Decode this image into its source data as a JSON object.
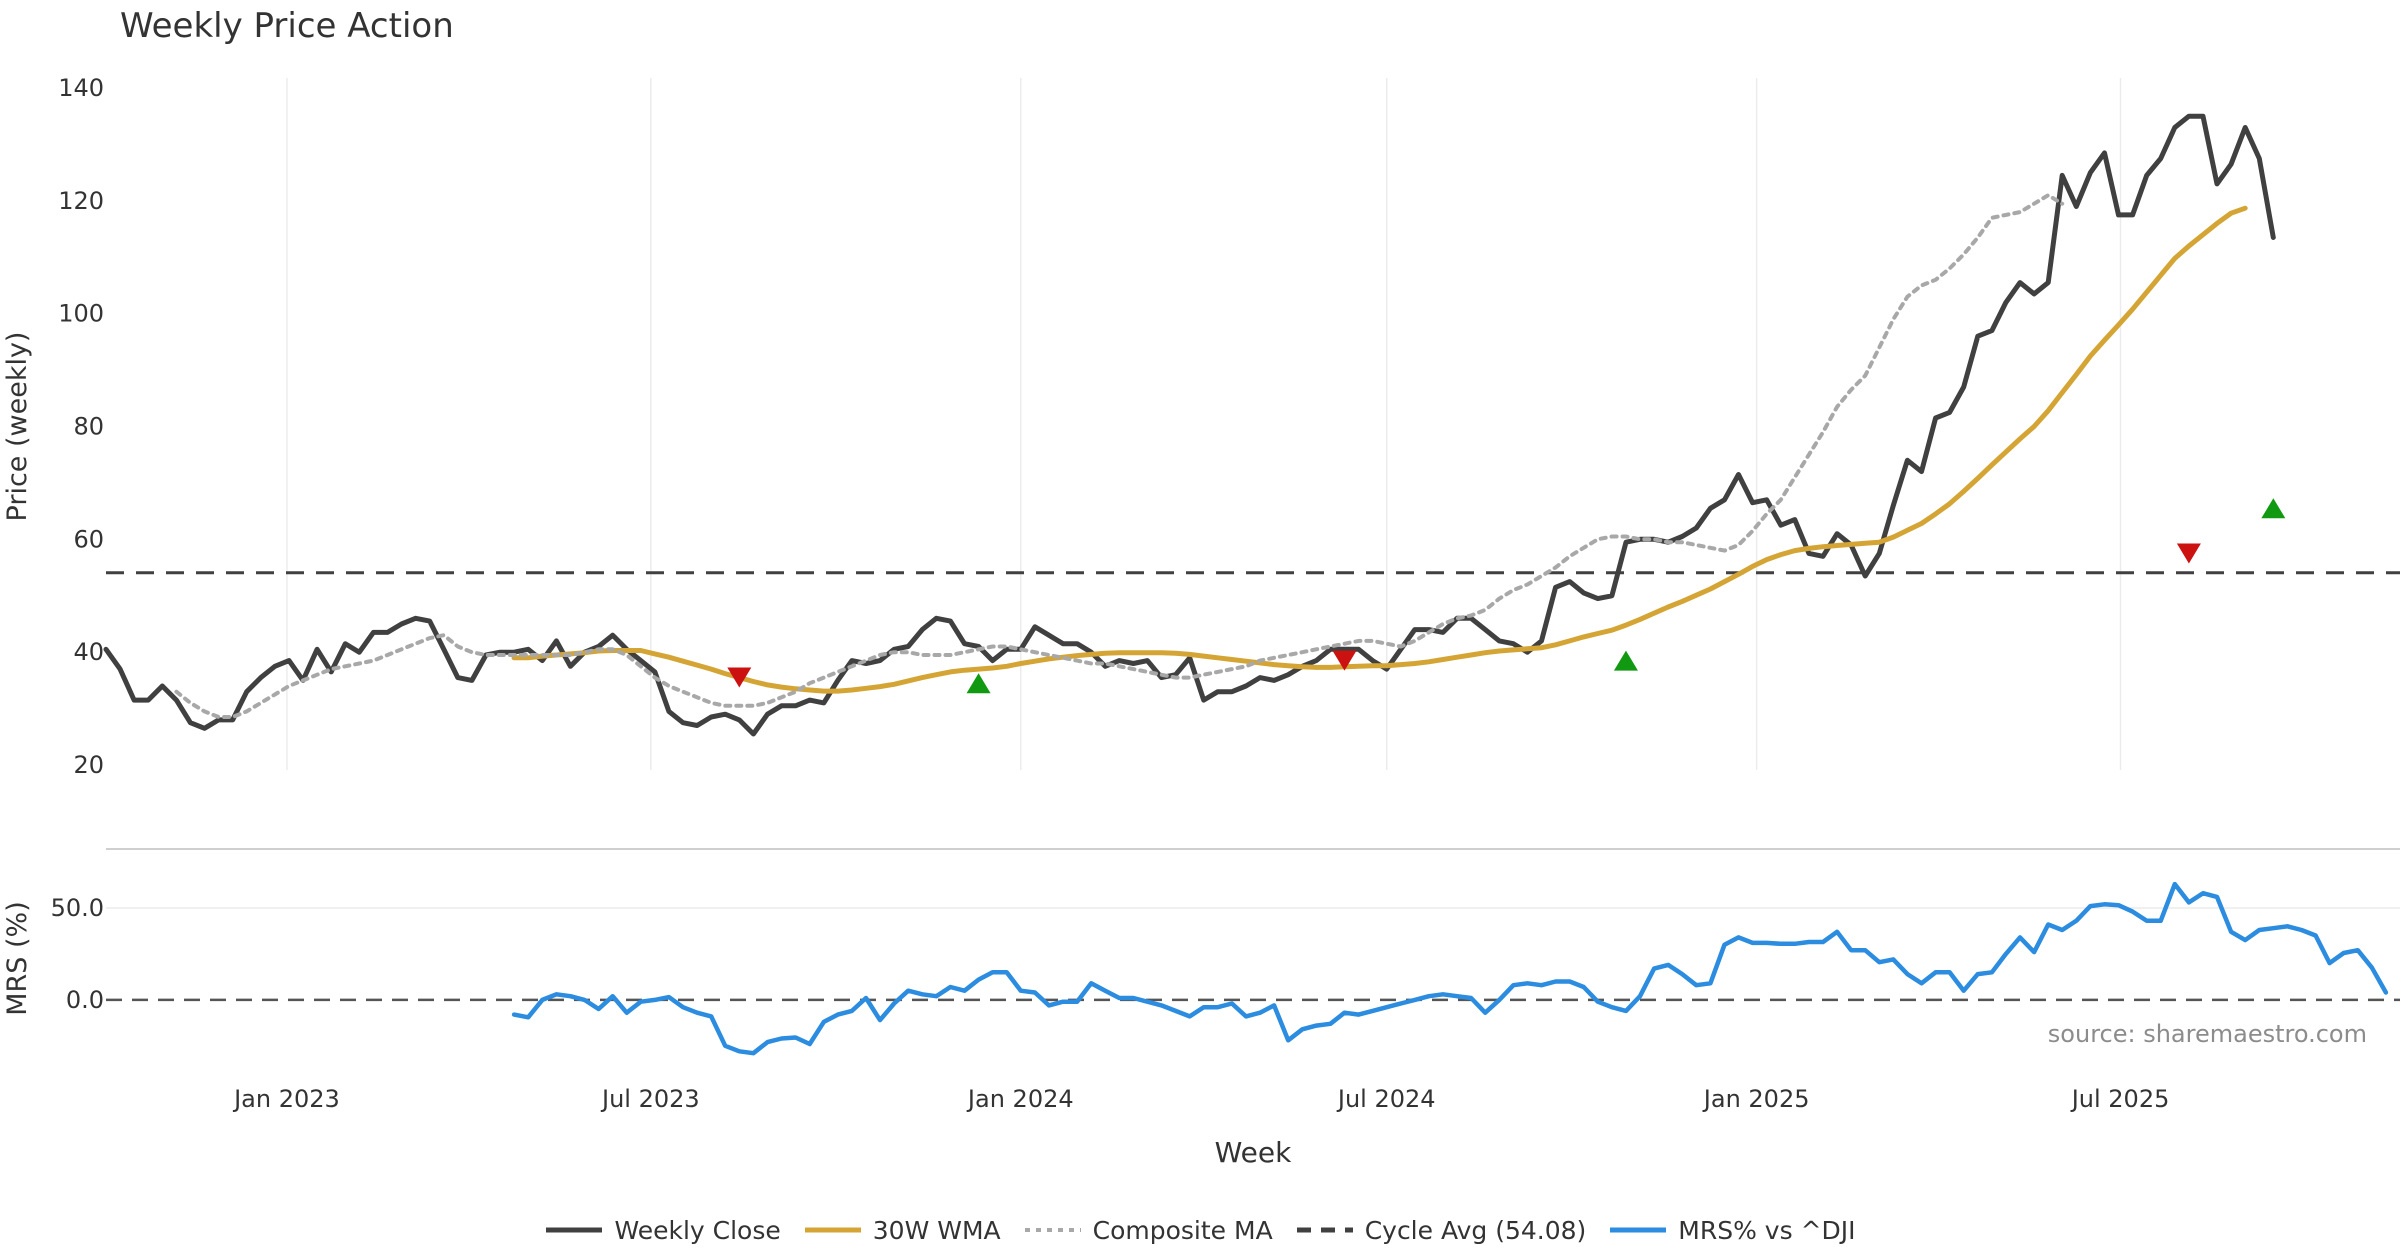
{
  "chart_data": [
    {
      "type": "line",
      "title": "Weekly Price Action",
      "xlabel": "",
      "ylabel": "Price (weekly)",
      "ylim": [
        20,
        140
      ],
      "yticks": [
        20,
        40,
        60,
        80,
        100,
        120,
        140
      ],
      "xlim": [
        "2022-10-03",
        "2025-11-17"
      ],
      "x_start": "2022-10-03",
      "x_step_days": 7,
      "series": [
        {
          "name": "Weekly Close",
          "color": "#404040",
          "style": "solid",
          "values": [
            40.5,
            37,
            31.5,
            31.5,
            34,
            31.5,
            27.5,
            26.5,
            28,
            28,
            33,
            35.5,
            37.5,
            38.5,
            35,
            40.5,
            36.5,
            41.5,
            40,
            43.5,
            43.5,
            45,
            46,
            45.5,
            40.5,
            35.5,
            35,
            39.5,
            40,
            40,
            40.5,
            38.5,
            42,
            37.5,
            40,
            41,
            43,
            40.5,
            38.5,
            36.5,
            29.5,
            27.5,
            27,
            28.5,
            29,
            28,
            25.5,
            29,
            30.5,
            30.5,
            31.5,
            31,
            35,
            38.5,
            38,
            38.5,
            40.5,
            41,
            44,
            46,
            45.5,
            41.5,
            41,
            38.5,
            40.5,
            40.5,
            44.5,
            43,
            41.5,
            41.5,
            40,
            37.5,
            38.5,
            38,
            38.5,
            35.5,
            36,
            39,
            31.5,
            33,
            33,
            34,
            35.5,
            35,
            36,
            37.5,
            38.5,
            40.5,
            40.5,
            40.5,
            38.5,
            37,
            40.5,
            44,
            44,
            43.5,
            46,
            46,
            44,
            42,
            41.5,
            40,
            42,
            51.5,
            52.5,
            50.5,
            49.5,
            50,
            59.5,
            60,
            60,
            59.5,
            60.5,
            62,
            65.5,
            67,
            71.5,
            66.5,
            67,
            62.5,
            63.5,
            57.5,
            57,
            61,
            59,
            53.5,
            57.5,
            66,
            74,
            72,
            81.5,
            82.5,
            87,
            96,
            97,
            102,
            105.5,
            103.5,
            105.5,
            124.5,
            119,
            125,
            128.5,
            117.5,
            117.5,
            124.5,
            127.5,
            133,
            135,
            135,
            123,
            126.5,
            133,
            127.5,
            113.5
          ]
        },
        {
          "name": "30W WMA",
          "color": "#d4a534",
          "style": "solid",
          "start_index": 29,
          "values": [
            39,
            39,
            39.3,
            39.5,
            39.7,
            39.9,
            40.2,
            40.3,
            40.3,
            40.3,
            39.7,
            39.1,
            38.4,
            37.7,
            37,
            36.2,
            35.5,
            34.8,
            34.2,
            33.8,
            33.5,
            33.3,
            33.1,
            33.1,
            33.3,
            33.6,
            33.9,
            34.3,
            34.9,
            35.5,
            36,
            36.5,
            36.8,
            37,
            37.2,
            37.5,
            38,
            38.4,
            38.8,
            39.1,
            39.4,
            39.6,
            39.8,
            39.9,
            39.9,
            39.9,
            39.9,
            39.8,
            39.6,
            39.3,
            39,
            38.7,
            38.4,
            38.1,
            37.8,
            37.6,
            37.4,
            37.3,
            37.3,
            37.4,
            37.5,
            37.6,
            37.6,
            37.8,
            38,
            38.3,
            38.7,
            39.1,
            39.5,
            39.9,
            40.2,
            40.4,
            40.6,
            40.8,
            41.3,
            42,
            42.7,
            43.3,
            43.9,
            44.8,
            45.8,
            46.9,
            48,
            49,
            50.1,
            51.2,
            52.5,
            53.8,
            55.2,
            56.4,
            57.3,
            58,
            58.4,
            58.7,
            58.9,
            59.1,
            59.3,
            59.5,
            60.4,
            61.6,
            62.8,
            64.5,
            66.3,
            68.5,
            70.8,
            73.2,
            75.5,
            77.8,
            80,
            82.8,
            86,
            89.2,
            92.5,
            95.3,
            98,
            100.8,
            103.8,
            106.8,
            109.8,
            112,
            114,
            116,
            117.8,
            118.7
          ]
        },
        {
          "name": "Composite MA",
          "color": "#a8a8a8",
          "style": "dotted",
          "start_index": 5,
          "values": [
            33,
            31,
            29.5,
            28.5,
            28.5,
            29.5,
            31,
            32.5,
            34,
            35,
            36,
            37,
            37.5,
            38,
            38.5,
            39.5,
            40.5,
            41.5,
            42.5,
            43,
            41,
            40,
            39.5,
            39.5,
            39.5,
            39.5,
            39.5,
            39.5,
            39.5,
            40,
            40.5,
            40.5,
            39.5,
            37.5,
            35.5,
            34,
            33,
            32,
            31,
            30.5,
            30.5,
            30.5,
            31,
            32,
            33,
            34.5,
            35.5,
            36.5,
            37.5,
            38.5,
            39.5,
            40,
            40,
            39.5,
            39.5,
            39.5,
            40,
            40.5,
            41,
            41,
            40.5,
            40,
            39.5,
            39,
            38.5,
            38,
            38,
            37.5,
            37,
            36.5,
            36,
            35.5,
            35.5,
            36,
            36.5,
            37,
            37.5,
            38.5,
            39,
            39.5,
            40,
            40.5,
            41,
            41.5,
            42,
            42,
            41.5,
            41,
            42,
            43.5,
            45,
            46,
            46.5,
            47.5,
            49.5,
            51,
            52,
            53.5,
            55,
            57,
            58.5,
            60,
            60.5,
            60.5,
            60,
            60,
            59.5,
            59.5,
            59,
            58.5,
            58,
            59,
            61.5,
            64.5,
            67,
            71,
            75,
            79,
            83.5,
            86.5,
            89,
            94,
            99,
            103,
            105,
            106,
            108,
            110.5,
            113.5,
            117,
            117.5,
            118,
            119.5,
            121,
            119.5
          ]
        },
        {
          "name": "Cycle Avg (54.08)",
          "color": "#404040",
          "style": "dashed",
          "value": 54.08
        }
      ],
      "markers": {
        "sell": [
          {
            "index": 45,
            "value": 35.5
          },
          {
            "index": 88,
            "value": 38.5
          },
          {
            "index": 148,
            "value": 57.5
          }
        ],
        "buy": [
          {
            "index": 62,
            "value": 34.5
          },
          {
            "index": 108,
            "value": 38.5
          },
          {
            "index": 154,
            "value": 65.5
          }
        ],
        "sell_color": "#cc1111",
        "buy_color": "#119911"
      }
    },
    {
      "type": "line",
      "title": "",
      "xlabel": "Week",
      "ylabel": "MRS (%)",
      "ylim": [
        -30,
        75
      ],
      "yticks": [
        0.0,
        50.0
      ],
      "ytick_labels": [
        "0.0",
        "50.0"
      ],
      "x_start": "2022-10-03",
      "x_step_days": 7,
      "series": [
        {
          "name": "MRS% vs ^DJI",
          "color": "#2b8ce0",
          "style": "solid",
          "start_index": 29,
          "values": [
            -8,
            -9.5,
            0,
            3,
            2,
            0,
            -5,
            2,
            -7,
            -1,
            0,
            1.5,
            -4,
            -7,
            -9,
            -25,
            -28,
            -29,
            -23,
            -21,
            -20.5,
            -24,
            -12,
            -8,
            -6,
            1,
            -11,
            -2,
            5,
            3,
            2,
            7,
            5,
            11,
            15,
            15,
            5,
            4,
            -3,
            -1,
            -1,
            9,
            5,
            1,
            1,
            -1,
            -3,
            -6,
            -9,
            -4,
            -4,
            -2,
            -9,
            -7,
            -3,
            -22,
            -16,
            -14,
            -13,
            -7,
            -8,
            -6,
            -4,
            -2,
            0,
            2,
            3,
            2,
            1,
            -7,
            0,
            8,
            9,
            8,
            10,
            10,
            7,
            -1,
            -4,
            -6,
            2,
            17,
            19,
            14,
            8,
            9,
            30,
            34,
            31,
            31,
            30.5,
            30.5,
            31.5,
            31.5,
            37,
            27,
            27,
            20.5,
            22,
            14,
            9,
            15,
            15,
            5,
            14,
            15,
            25,
            34,
            26,
            41,
            38,
            43,
            51,
            52,
            51.5,
            48,
            43,
            43,
            63,
            53,
            58,
            56,
            37,
            32.5,
            38,
            39,
            40,
            38,
            35,
            20,
            25.5,
            27,
            17.5,
            4
          ]
        }
      ],
      "zero_line": 0
    }
  ],
  "x_ticks": [
    {
      "date": "2023-01-01",
      "label": "Jan 2023"
    },
    {
      "date": "2023-07-01",
      "label": "Jul 2023"
    },
    {
      "date": "2024-01-01",
      "label": "Jan 2024"
    },
    {
      "date": "2024-07-01",
      "label": "Jul 2024"
    },
    {
      "date": "2025-01-01",
      "label": "Jan 2025"
    },
    {
      "date": "2025-07-01",
      "label": "Jul 2025"
    }
  ],
  "legend": [
    {
      "label": "Weekly Close",
      "color": "#404040",
      "style": "solid"
    },
    {
      "label": "30W WMA",
      "color": "#d4a534",
      "style": "solid"
    },
    {
      "label": "Composite MA",
      "color": "#a8a8a8",
      "style": "dotted"
    },
    {
      "label": "Cycle Avg (54.08)",
      "color": "#404040",
      "style": "dashed"
    },
    {
      "label": "MRS% vs ^DJI",
      "color": "#2b8ce0",
      "style": "solid"
    }
  ],
  "source_note": "source: sharemaestro.com"
}
